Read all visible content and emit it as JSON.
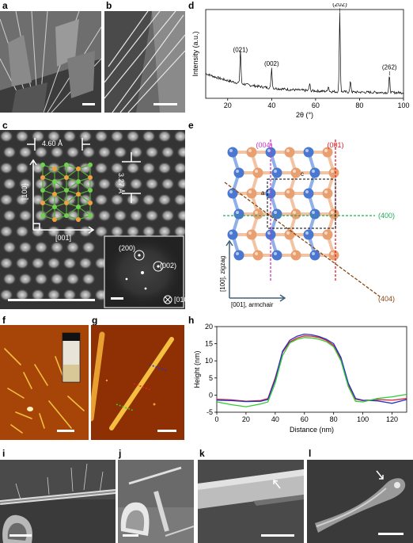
{
  "figure": {
    "panels": {
      "a": {
        "label": "a"
      },
      "b": {
        "label": "b"
      },
      "c": {
        "label": "c",
        "spacing_horizontal": "4.60 Å",
        "spacing_vertical": "3.27 Å",
        "axis_vertical": "[100]",
        "axis_horizontal": "[001]",
        "fft_spots": [
          "(200)",
          "(002)"
        ],
        "zone_axis": "[010]"
      },
      "d": {
        "label": "d"
      },
      "e": {
        "label": "e",
        "planes": [
          "(004)",
          "(001)",
          "(400)",
          "(404)"
        ],
        "cell_a": "a",
        "cell_c": "c",
        "axis_vertical": "[100], zigzag",
        "axis_horizontal": "[001], armchair"
      },
      "f": {
        "label": "f"
      },
      "g": {
        "label": "g"
      },
      "h": {
        "label": "h"
      },
      "i": {
        "label": "i"
      },
      "j": {
        "label": "j"
      },
      "k": {
        "label": "k"
      },
      "l": {
        "label": "l"
      }
    },
    "colors": {
      "plane_004": "#cc33cc",
      "plane_001": "#e0202a",
      "plane_400": "#22aa55",
      "plane_404": "#8b4513",
      "atom_blue": "#4a78d0",
      "atom_orange": "#e8a070",
      "afm_bg": "#b0420a",
      "line_red": "#e0202a",
      "line_blue": "#2233cc",
      "line_green": "#33cc33"
    }
  },
  "chart_data": [
    {
      "type": "line",
      "panel": "d",
      "xlabel": "2θ (°)",
      "ylabel": "Intensity (a.u.)",
      "xlim": [
        10,
        100
      ],
      "xticks": [
        20,
        40,
        60,
        80,
        100
      ],
      "peaks": [
        {
          "x": 25.8,
          "y": 0.44,
          "label": "(021)"
        },
        {
          "x": 40.0,
          "y": 0.28,
          "label": "(002)"
        },
        {
          "x": 57.3,
          "y": 0.14,
          "label": ""
        },
        {
          "x": 65.8,
          "y": 0.12,
          "label": ""
        },
        {
          "x": 71.0,
          "y": 0.95,
          "label": "(202)"
        },
        {
          "x": 75.9,
          "y": 0.18,
          "label": ""
        },
        {
          "x": 93.6,
          "y": 0.24,
          "label": "(262)"
        }
      ]
    },
    {
      "type": "line",
      "panel": "h",
      "xlabel": "Distance (nm)",
      "ylabel": "Height (nm)",
      "xlim": [
        0,
        130
      ],
      "ylim": [
        -5,
        20
      ],
      "xticks": [
        0,
        20,
        40,
        60,
        80,
        100,
        120
      ],
      "yticks": [
        -5,
        0,
        5,
        10,
        15,
        20
      ],
      "series": [
        {
          "color": "red",
          "x": [
            0,
            10,
            20,
            30,
            35,
            40,
            45,
            50,
            55,
            60,
            65,
            70,
            75,
            80,
            85,
            90,
            95,
            100,
            110,
            120,
            130
          ],
          "values": [
            -1.2,
            -1.4,
            -1.8,
            -1.6,
            -1.0,
            5.0,
            12.5,
            15.5,
            16.7,
            17.3,
            17.2,
            16.8,
            16.0,
            14.5,
            10.5,
            3.0,
            -1.2,
            -1.6,
            -1.3,
            -1.5,
            -1.0
          ]
        },
        {
          "color": "blue",
          "x": [
            0,
            10,
            20,
            30,
            35,
            40,
            45,
            50,
            55,
            60,
            65,
            70,
            75,
            80,
            85,
            90,
            95,
            100,
            110,
            120,
            130
          ],
          "values": [
            -1.5,
            -1.6,
            -1.9,
            -1.8,
            -1.3,
            4.5,
            12.8,
            16.0,
            17.2,
            17.8,
            17.6,
            17.1,
            16.3,
            15.0,
            11.0,
            3.5,
            -1.0,
            -1.5,
            -1.7,
            -2.4,
            -1.3
          ]
        },
        {
          "color": "green",
          "x": [
            0,
            10,
            20,
            30,
            35,
            40,
            45,
            50,
            55,
            60,
            65,
            70,
            75,
            80,
            85,
            90,
            95,
            100,
            110,
            120,
            130
          ],
          "values": [
            -2.0,
            -2.8,
            -3.4,
            -2.6,
            -2.0,
            3.5,
            11.5,
            15.2,
            16.3,
            16.8,
            16.7,
            16.3,
            15.6,
            14.1,
            10.0,
            2.5,
            -1.8,
            -2.0,
            -1.0,
            -0.5,
            0.2
          ]
        }
      ]
    }
  ]
}
